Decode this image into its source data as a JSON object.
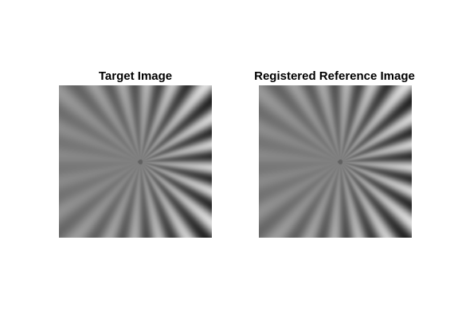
{
  "figure": {
    "panels": [
      {
        "title": "Target Image"
      },
      {
        "title": "Registered Reference Image"
      }
    ]
  },
  "image": {
    "spoke_count": 20,
    "colormap": "gray"
  }
}
